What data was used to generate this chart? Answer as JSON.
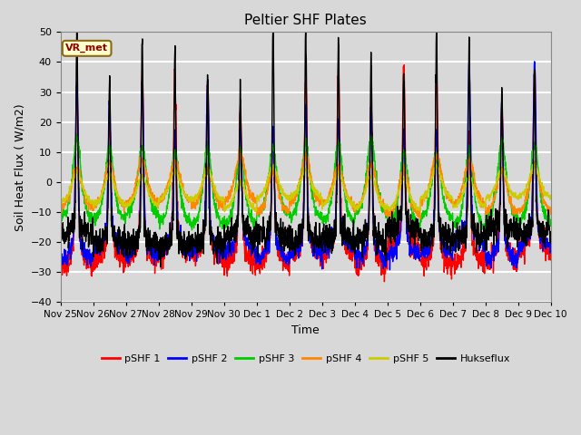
{
  "title": "Peltier SHF Plates",
  "xlabel": "Time",
  "ylabel": "Soil Heat Flux ( W/m2)",
  "ylim": [
    -40,
    50
  ],
  "annotation": "VR_met",
  "series_colors": {
    "pSHF 1": "#ff0000",
    "pSHF 2": "#0000ff",
    "pSHF 3": "#00cc00",
    "pSHF 4": "#ff8800",
    "pSHF 5": "#cccc00",
    "Hukseflux": "#000000"
  },
  "xtick_labels": [
    "Nov 25",
    "Nov 26",
    "Nov 27",
    "Nov 28",
    "Nov 29",
    "Nov 30",
    "Dec 1",
    "Dec 2",
    "Dec 3",
    "Dec 4",
    "Dec 5",
    "Dec 6",
    "Dec 7",
    "Dec 8",
    "Dec 9",
    "Dec 10"
  ],
  "background_color": "#d8d8d8",
  "plot_bg_color": "#d8d8d8",
  "grid_color": "#ffffff",
  "figsize": [
    6.4,
    4.8
  ],
  "dpi": 100
}
